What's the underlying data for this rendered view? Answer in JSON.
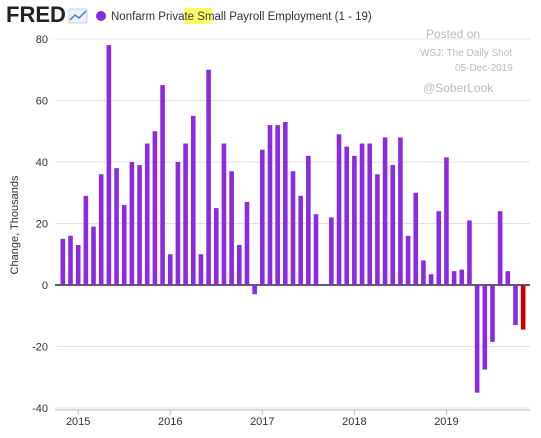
{
  "logo": "FRED",
  "watermark": {
    "line1": "Posted on",
    "line2": "WSJ: The Daily Shot",
    "line3": "05-Dec-2019",
    "line4": "@SoberLook"
  },
  "chart_data": {
    "type": "bar",
    "y_label": "Change, Thousands",
    "categories": [
      null,
      null,
      "2015",
      null,
      null,
      null,
      null,
      null,
      null,
      null,
      null,
      null,
      null,
      null,
      "2016",
      null,
      null,
      null,
      null,
      null,
      null,
      null,
      null,
      null,
      null,
      null,
      "2017",
      null,
      null,
      null,
      null,
      null,
      null,
      null,
      null,
      null,
      null,
      null,
      "2018",
      null,
      null,
      null,
      null,
      null,
      null,
      null,
      null,
      null,
      null,
      null,
      "2019",
      null,
      null,
      null,
      null,
      null,
      null,
      null,
      null,
      null,
      null
    ],
    "series": [
      {
        "name": "Nonfarm Private Small Payroll Employment (1 - 19)",
        "color": "#8a2be2",
        "values": [
          15,
          16,
          13,
          29,
          19,
          36,
          78,
          38,
          26,
          40,
          39,
          46,
          50,
          65,
          10,
          40,
          46,
          55,
          10,
          70,
          25,
          46,
          37,
          13,
          27,
          -3,
          44,
          52,
          52,
          53,
          37,
          29,
          42,
          23,
          0.3,
          22,
          49,
          45,
          42,
          46,
          46,
          36,
          48,
          39,
          48,
          16,
          30,
          8,
          3.5,
          24,
          41.5,
          4.5,
          5,
          21,
          -35,
          -27.5,
          -18.5,
          24,
          4.5,
          -13,
          -14.5
        ]
      }
    ],
    "last_bar_color": "#cc0000",
    "ylim": [
      -40,
      80
    ],
    "yticks": [
      -40,
      -20,
      0,
      20,
      40,
      60,
      80
    ],
    "grid": true
  }
}
